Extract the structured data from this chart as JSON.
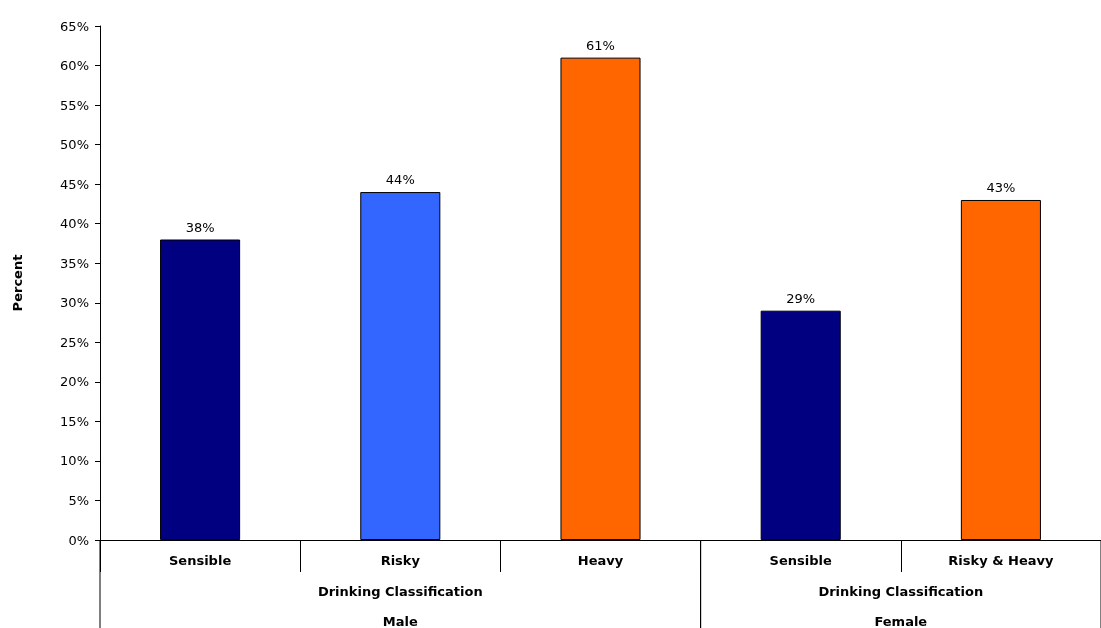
{
  "chart_data": {
    "type": "bar",
    "ylabel": "Percent",
    "xlabel": "Drinking Classification",
    "categories": [
      "Sensible",
      "Risky",
      "Heavy",
      "Sensible",
      "Risky & Heavy"
    ],
    "series": [
      {
        "colors": [
          "#000080",
          "#3366ff",
          "#ff6600",
          null,
          null
        ],
        "values": [
          38,
          44,
          61,
          null,
          null
        ],
        "value_labels": [
          "38%",
          "44%",
          "61%",
          null,
          null
        ]
      },
      {
        "colors": [
          null,
          null,
          null,
          "#000080",
          "#ff6600"
        ],
        "values": [
          null,
          null,
          null,
          29,
          43
        ],
        "value_labels": [
          null,
          null,
          null,
          "29%",
          "43%"
        ]
      }
    ],
    "annotations": [
      "Male",
      "Female"
    ],
    "ylim": [
      0,
      65
    ],
    "yticks": [
      {
        "value": 0,
        "label": "0%"
      },
      {
        "value": 5,
        "label": "5%"
      },
      {
        "value": 10,
        "label": "10%"
      },
      {
        "value": 15,
        "label": "15%"
      },
      {
        "value": 20,
        "label": "20%"
      },
      {
        "value": 25,
        "label": "25%"
      },
      {
        "value": 30,
        "label": "30%"
      },
      {
        "value": 35,
        "label": "35%"
      },
      {
        "value": 40,
        "label": "40%"
      },
      {
        "value": 45,
        "label": "45%"
      },
      {
        "value": 50,
        "label": "50%"
      },
      {
        "value": 55,
        "label": "55%"
      },
      {
        "value": 60,
        "label": "60%"
      },
      {
        "value": 65,
        "label": "65%"
      }
    ],
    "grid": false
  }
}
